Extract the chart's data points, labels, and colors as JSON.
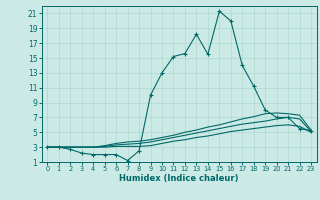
{
  "xlabel": "Humidex (Indice chaleur)",
  "bg_color": "#cceae5",
  "line_color": "#006868",
  "grid_color": "#b0d8d0",
  "xlim": [
    -0.5,
    23.5
  ],
  "ylim": [
    1,
    22
  ],
  "xticks": [
    0,
    1,
    2,
    3,
    4,
    5,
    6,
    7,
    8,
    9,
    10,
    11,
    12,
    13,
    14,
    15,
    16,
    17,
    18,
    19,
    20,
    21,
    22,
    23
  ],
  "yticks": [
    1,
    3,
    5,
    7,
    9,
    11,
    13,
    15,
    17,
    19,
    21
  ],
  "series": [
    {
      "x": [
        0,
        1,
        2,
        3,
        4,
        5,
        6,
        7,
        8,
        9,
        10,
        11,
        12,
        13,
        14,
        15,
        16,
        17,
        18,
        19,
        20,
        21,
        22,
        23
      ],
      "y": [
        3,
        3,
        2.7,
        2.2,
        2.0,
        2.0,
        2.0,
        1.2,
        2.5,
        10,
        13,
        15.2,
        15.6,
        18.2,
        15.5,
        21.3,
        20,
        14,
        11.2,
        8,
        7,
        7,
        5.5,
        5.2
      ],
      "marker": "+"
    },
    {
      "x": [
        0,
        1,
        2,
        3,
        4,
        5,
        6,
        7,
        8,
        9,
        10,
        11,
        12,
        13,
        14,
        15,
        16,
        17,
        18,
        19,
        20,
        21,
        22,
        23
      ],
      "y": [
        3,
        3,
        3,
        3,
        3,
        3.2,
        3.5,
        3.7,
        3.8,
        4.0,
        4.3,
        4.6,
        5.0,
        5.3,
        5.7,
        6.0,
        6.4,
        6.8,
        7.1,
        7.5,
        7.6,
        7.5,
        7.3,
        5.3
      ],
      "marker": null
    },
    {
      "x": [
        0,
        1,
        2,
        3,
        4,
        5,
        6,
        7,
        8,
        9,
        10,
        11,
        12,
        13,
        14,
        15,
        16,
        17,
        18,
        19,
        20,
        21,
        22,
        23
      ],
      "y": [
        3,
        3,
        3,
        3,
        3,
        3.1,
        3.3,
        3.4,
        3.5,
        3.7,
        4.0,
        4.3,
        4.6,
        4.9,
        5.2,
        5.5,
        5.8,
        6.1,
        6.3,
        6.5,
        6.8,
        7.0,
        6.8,
        5.1
      ],
      "marker": null
    },
    {
      "x": [
        0,
        1,
        2,
        3,
        4,
        5,
        6,
        7,
        8,
        9,
        10,
        11,
        12,
        13,
        14,
        15,
        16,
        17,
        18,
        19,
        20,
        21,
        22,
        23
      ],
      "y": [
        3,
        3,
        3,
        3,
        3,
        3.0,
        3.1,
        3.1,
        3.1,
        3.2,
        3.5,
        3.8,
        4.0,
        4.3,
        4.5,
        4.8,
        5.1,
        5.3,
        5.5,
        5.7,
        5.9,
        6.0,
        5.8,
        5.0
      ],
      "marker": null
    }
  ],
  "xlabel_fontsize": 6,
  "tick_fontsize_x": 4.8,
  "tick_fontsize_y": 5.5
}
